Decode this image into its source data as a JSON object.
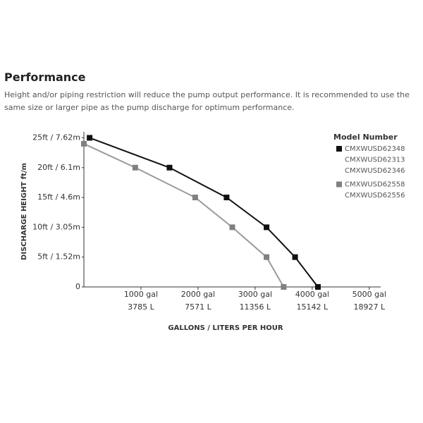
{
  "heading": "Performance",
  "description": "Height and/or piping restriction will reduce the pump output performance. It is recommended to use the same size or larger pipe as the pump discharge for optimum performance.",
  "chart_data": {
    "type": "line",
    "x_label": "GALLONS / LITERS PER HOUR",
    "y_label": "DISCHARGE HEIGHT ft/m",
    "legend_title": "Model Number",
    "xlim": [
      0,
      5200
    ],
    "ylim": [
      0,
      26
    ],
    "xticks": [
      {
        "value": 1000,
        "label": "1000 gal"
      },
      {
        "value": 2000,
        "label": "2000 gal"
      },
      {
        "value": 3000,
        "label": "3000 gal"
      },
      {
        "value": 4000,
        "label": "4000 gal"
      },
      {
        "value": 5000,
        "label": "5000 gal"
      }
    ],
    "xtick_liters": [
      "3785 L",
      "7571 L",
      "11356 L",
      "15142 L",
      "18927 L"
    ],
    "yticks": [
      0,
      {
        "value": 5,
        "label": "5ft / 1.52m"
      },
      {
        "value": 10,
        "label": "10ft / 3.05m"
      },
      {
        "value": 15,
        "label": "15ft / 4.6m"
      },
      {
        "value": 20,
        "label": "20ft / 6.1m"
      },
      {
        "value": 25,
        "label": "25ft / 7.62m"
      }
    ],
    "series": [
      {
        "name": [
          "CMXWUSD62348",
          "CMXWUSD62313",
          "CMXWUSD62346"
        ],
        "color": "#111111",
        "marker_color": "#111111",
        "x": [
          100,
          1500,
          2500,
          3200,
          3700,
          4100
        ],
        "values": [
          25,
          20,
          15,
          10,
          5,
          0
        ]
      },
      {
        "name": [
          "CMXWUSD62558",
          "CMXWUSD62556"
        ],
        "color": "#9a9a9a",
        "marker_color": "#808080",
        "x": [
          0,
          900,
          1950,
          2600,
          3200,
          3500
        ],
        "values": [
          24,
          20,
          15,
          10,
          5,
          0
        ]
      }
    ]
  }
}
